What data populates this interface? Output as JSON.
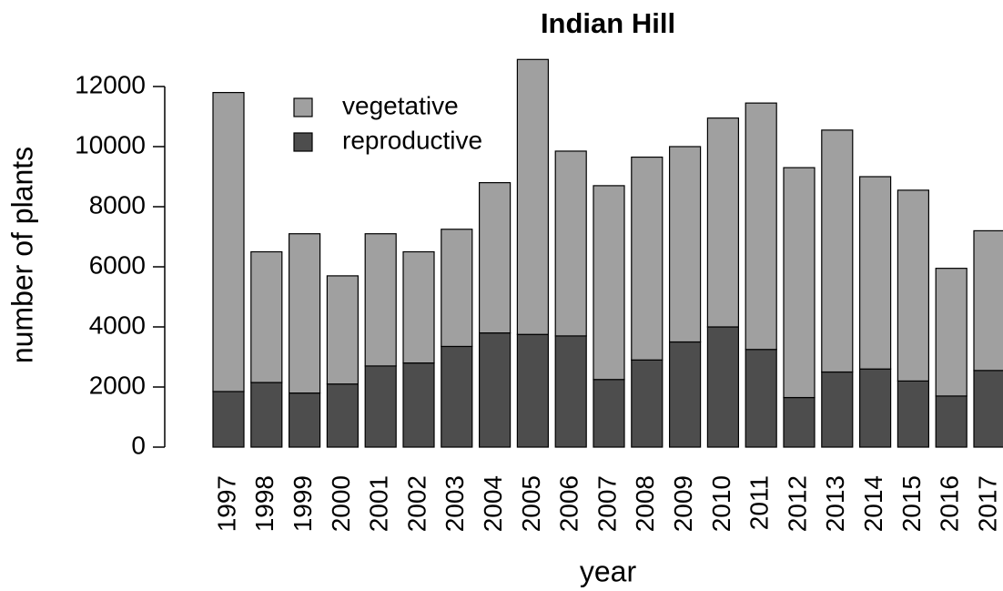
{
  "chart_data": {
    "type": "stacked_bar",
    "title": "Indian Hill",
    "x_label": "year",
    "y_label": "number of plants",
    "categories": [
      "1997",
      "1998",
      "1999",
      "2000",
      "2001",
      "2002",
      "2003",
      "2004",
      "2005",
      "2006",
      "2007",
      "2008",
      "2009",
      "2010",
      "2011",
      "2012",
      "2013",
      "2014",
      "2015",
      "2016",
      "2017"
    ],
    "series": [
      {
        "name": "reproductive",
        "color": "#4d4d4d",
        "values": [
          1850,
          2150,
          1800,
          2100,
          2700,
          2800,
          3350,
          3800,
          3750,
          3700,
          2250,
          2900,
          3500,
          4000,
          3250,
          1650,
          2500,
          2600,
          2200,
          1700,
          2550
        ]
      },
      {
        "name": "vegetative",
        "color": "#a0a0a0",
        "values": [
          9950,
          4350,
          5300,
          3600,
          4400,
          3700,
          3900,
          5000,
          9150,
          6150,
          6450,
          6750,
          6500,
          6950,
          8200,
          7650,
          8050,
          6400,
          6350,
          4250,
          4650
        ]
      }
    ],
    "ylim": [
      0,
      12000
    ],
    "yticks": [
      0,
      2000,
      4000,
      6000,
      8000,
      10000,
      12000
    ],
    "grid": false,
    "legend": "top-left"
  }
}
